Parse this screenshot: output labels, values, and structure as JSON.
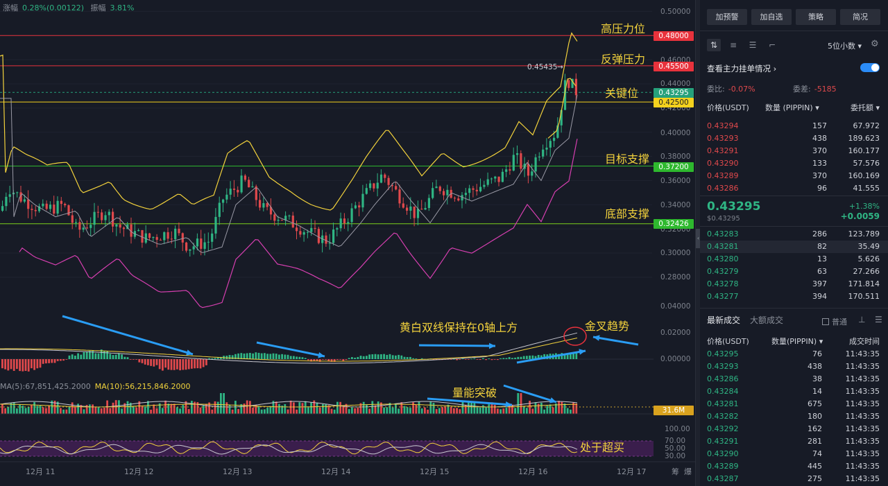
{
  "header": {
    "change_label": "涨幅",
    "change_value": "0.28%(0.00122)",
    "amplitude_label": "振幅",
    "amplitude_value": "3.81%"
  },
  "price_axis": [
    "0.50000",
    "0.46000",
    "0.44000",
    "0.42000",
    "0.40000",
    "0.38000",
    "0.36000",
    "0.34000",
    "0.32000",
    "0.30000",
    "0.28000",
    "0.04000",
    "0.02000",
    "0.00000"
  ],
  "rsi_axis": [
    "100.00",
    "70.00",
    "50.00",
    "30.00"
  ],
  "price_tags": [
    {
      "label": "0.48000",
      "color": "#e8323c"
    },
    {
      "label": "0.45500",
      "color": "#e8323c"
    },
    {
      "label": "0.43295",
      "color": "#26a17b"
    },
    {
      "label": "0.42500",
      "color": "#f4d21e"
    },
    {
      "label": "0.37200",
      "color": "#2eb82e"
    },
    {
      "label": "0.32426",
      "color": "#2eb82e"
    }
  ],
  "volume_tag": "31.6M",
  "max_marker": "0.45435",
  "annotations": {
    "high_resistance": "高压力位",
    "rebound_resistance": "反弹压力",
    "key_level": "关键位",
    "target_support": "目标支撑",
    "bottom_support": "底部支撑",
    "macd_note": "黄白双线保持在0轴上方",
    "golden_cross": "金叉趋势",
    "volume_break": "量能突破",
    "overbought": "处于超买"
  },
  "volume_legend": {
    "ma5": "MA(5):67,851,425.2000",
    "ma10": "MA(10):56,215,846.2000"
  },
  "dates": [
    "12月 11",
    "12月 12",
    "12月 13",
    "12月 14",
    "12月 15",
    "12月 16",
    "12月 17"
  ],
  "bottom_right": {
    "a": "筹",
    "b": "爆"
  },
  "sidebar": {
    "top_buttons": [
      "加预警",
      "加自选",
      "策略",
      "简况"
    ],
    "decimal_select": "5位小数",
    "main_orders_label": "查看主力挂单情况",
    "ratio": {
      "label1": "委比:",
      "value1": "-0.07%",
      "label2": "委差:",
      "value2": "-5185"
    },
    "orderbook_headers": [
      "价格(USDT)",
      "数量 (PIPPIN)",
      "委托额"
    ],
    "asks": [
      [
        "0.43294",
        "157",
        "67.972"
      ],
      [
        "0.43293",
        "438",
        "189.623"
      ],
      [
        "0.43291",
        "370",
        "160.177"
      ],
      [
        "0.43290",
        "133",
        "57.576"
      ],
      [
        "0.43289",
        "370",
        "160.169"
      ],
      [
        "0.43286",
        "96",
        "41.555"
      ]
    ],
    "last_price": "0.43295",
    "last_price_usd": "$0.43295",
    "change_pct": "+1.38%",
    "change_abs": "+0.0059",
    "bids": [
      [
        "0.43283",
        "286",
        "123.789"
      ],
      [
        "0.43281",
        "82",
        "35.49"
      ],
      [
        "0.43280",
        "13",
        "5.626"
      ],
      [
        "0.43279",
        "63",
        "27.266"
      ],
      [
        "0.43278",
        "397",
        "171.814"
      ],
      [
        "0.43277",
        "394",
        "170.511"
      ]
    ],
    "trade_tabs": [
      "最新成交",
      "大额成交"
    ],
    "normal_label": "普通",
    "trade_headers": [
      "价格(USDT)",
      "数量(PIPPIN)",
      "成交时间"
    ],
    "trades": [
      [
        "0.43295",
        "76",
        "11:43:35"
      ],
      [
        "0.43293",
        "438",
        "11:43:35"
      ],
      [
        "0.43286",
        "38",
        "11:43:35"
      ],
      [
        "0.43284",
        "14",
        "11:43:35"
      ],
      [
        "0.43281",
        "675",
        "11:43:35"
      ],
      [
        "0.43282",
        "180",
        "11:43:35"
      ],
      [
        "0.43292",
        "162",
        "11:43:35"
      ],
      [
        "0.43291",
        "281",
        "11:43:35"
      ],
      [
        "0.43290",
        "74",
        "11:43:35"
      ],
      [
        "0.43289",
        "445",
        "11:43:35"
      ],
      [
        "0.43287",
        "275",
        "11:43:35"
      ]
    ]
  },
  "colors": {
    "up": "#2fb584",
    "down": "#e0494c",
    "ma_yellow": "#f3d23c",
    "ma_white": "#c8c8d0",
    "boll_pink": "#d63fb0",
    "arrow_blue": "#2a9df4"
  }
}
